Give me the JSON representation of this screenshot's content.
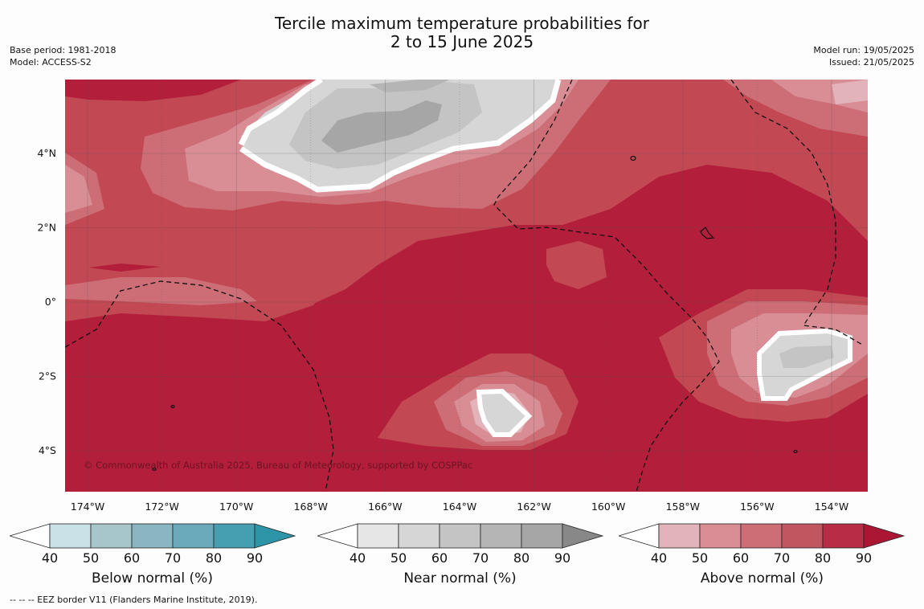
{
  "title": {
    "line1": "Tercile maximum temperature probabilities for",
    "line2": "2 to 15 June 2025"
  },
  "meta_left": {
    "base_period": "Base period: 1981-2018",
    "model": "Model: ACCESS-S2"
  },
  "meta_right": {
    "model_run": "Model run: 19/05/2025",
    "issued": "Issued: 21/05/2025"
  },
  "map": {
    "lon_ticks": [
      "174°W",
      "172°W",
      "170°W",
      "168°W",
      "166°W",
      "164°W",
      "162°W",
      "160°W",
      "158°W",
      "156°W",
      "154°W"
    ],
    "lat_ticks": [
      "4°N",
      "2°N",
      "0°",
      "2°S",
      "4°S"
    ],
    "copyright": "© Commonwealth of Australia 2025, Bureau of Meteorology, supported by COSPPac",
    "colors": {
      "above_80_90": "#b31e3a",
      "above_70_80": "#c24854",
      "above_60_70": "#cd6e76",
      "above_50_60": "#d98e96",
      "above_40_50": "#e2b4ba",
      "near_40_50": "#e6e6e6",
      "near_50_60": "#d6d6d6",
      "near_60_70": "#c4c4c4",
      "near_70_80": "#b5b5b5",
      "near_80_90": "#a6a6a6"
    }
  },
  "legends": {
    "below": {
      "label": "Below normal (%)",
      "ticks": [
        "40",
        "50",
        "60",
        "70",
        "80",
        "90"
      ],
      "colors": [
        "#ffffff",
        "#c9e1e7",
        "#a7c6cc",
        "#8ab6c1",
        "#6aaaba",
        "#469fb1",
        "#2e95a8"
      ]
    },
    "near": {
      "label": "Near normal (%)",
      "ticks": [
        "40",
        "50",
        "60",
        "70",
        "80",
        "90"
      ],
      "colors": [
        "#ffffff",
        "#e6e6e6",
        "#d6d6d6",
        "#c4c4c4",
        "#b5b5b5",
        "#a6a6a6",
        "#888888"
      ]
    },
    "above": {
      "label": "Above normal (%)",
      "ticks": [
        "40",
        "50",
        "60",
        "70",
        "80",
        "90"
      ],
      "colors": [
        "#ffffff",
        "#e2b4ba",
        "#d98e96",
        "#cd6e76",
        "#c25660",
        "#b72d45",
        "#ab1634"
      ]
    }
  },
  "footnote": "--  --  -- EEZ border V11 (Flanders Marine Institute, 2019)."
}
